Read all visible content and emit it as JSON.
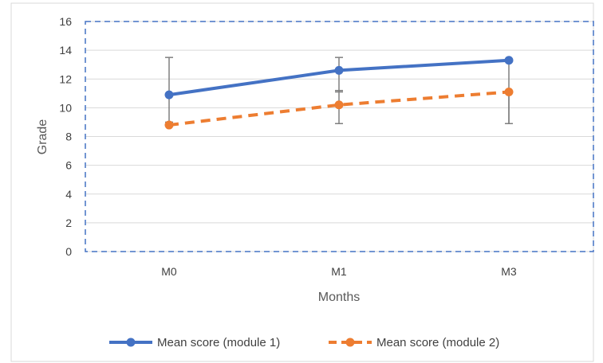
{
  "chart_data": {
    "type": "line",
    "categories": [
      "M0",
      "M1",
      "M3"
    ],
    "xlabel": "Months",
    "ylabel": "Grade",
    "ylim": [
      0,
      16
    ],
    "yticks": [
      0,
      2,
      4,
      6,
      8,
      10,
      12,
      14,
      16
    ],
    "grid": true,
    "legend_position": "bottom",
    "series": [
      {
        "name": "Mean score (module 1)",
        "values": [
          10.9,
          12.6,
          13.3
        ],
        "error_low": [
          9.0,
          11.1,
          8.9
        ],
        "error_high": [
          13.5,
          13.5,
          13.3
        ],
        "color": "#4472C4",
        "line_style": "solid"
      },
      {
        "name": "Mean score (module 2)",
        "values": [
          8.8,
          10.2,
          11.1
        ],
        "error_low": [
          8.8,
          8.9,
          8.9
        ],
        "error_high": [
          8.8,
          11.2,
          11.1
        ],
        "color": "#ED7D31",
        "line_style": "dashed"
      }
    ],
    "plot_border_color": "#4472C4",
    "error_bar_color": "#7F7F7F"
  }
}
